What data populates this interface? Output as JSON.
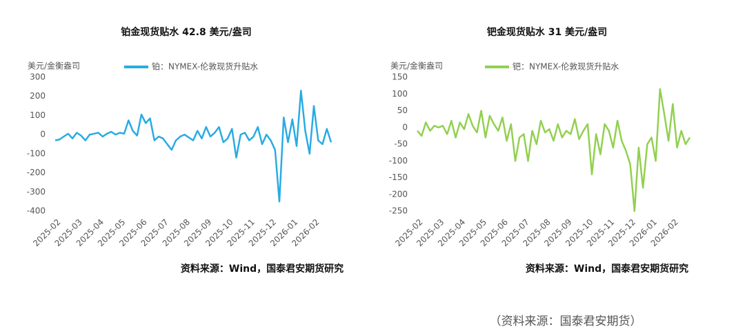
{
  "chart_data": [
    {
      "type": "line",
      "title": "铂金现货贴水 42.8 美元/盎司",
      "y_label": "美元/金衡盎司",
      "source": "资料来源：Wind，国泰君安期货研究",
      "categories": [
        "2025-02",
        null,
        null,
        null,
        null,
        "2025-03",
        null,
        null,
        null,
        null,
        "2025-04",
        null,
        null,
        null,
        null,
        "2025-05",
        null,
        null,
        null,
        null,
        "2025-06",
        null,
        null,
        null,
        null,
        "2025-07",
        null,
        null,
        null,
        null,
        "2025-08",
        null,
        null,
        null,
        null,
        "2025-09",
        null,
        null,
        null,
        null,
        "2025-10",
        null,
        null,
        null,
        null,
        "2025-11",
        null,
        null,
        null,
        null,
        "2025-12",
        null,
        null,
        null,
        null,
        "2026-01",
        null,
        null,
        null,
        null,
        "2026-02",
        null,
        null,
        null,
        null
      ],
      "series": [
        {
          "name": "铂：NYMEX-伦敦现货升贴水",
          "color": "#29abe2",
          "values": [
            -30,
            -25,
            -10,
            5,
            -20,
            10,
            -5,
            -30,
            0,
            5,
            10,
            -10,
            5,
            15,
            0,
            10,
            5,
            75,
            20,
            -5,
            105,
            60,
            85,
            -30,
            -10,
            -20,
            -50,
            -80,
            -30,
            -10,
            0,
            -15,
            -30,
            20,
            -20,
            40,
            -10,
            10,
            40,
            -40,
            -20,
            30,
            -120,
            0,
            10,
            -30,
            -10,
            40,
            -50,
            0,
            -30,
            -80,
            -350,
            90,
            -40,
            80,
            -60,
            230,
            20,
            -100,
            150,
            -30,
            -50,
            30,
            -40
          ]
        }
      ],
      "ylim": [
        -400,
        300
      ],
      "yticks": [
        300,
        200,
        100,
        0,
        -100,
        -200,
        -300,
        -400
      ],
      "grid": false
    },
    {
      "type": "line",
      "title": "钯金现货贴水 31 美元/盎司",
      "y_label": "美元/金衡盎司",
      "source": "资料来源：Wind，国泰君安期货研究",
      "categories": [
        "2025-02",
        null,
        null,
        null,
        null,
        "2025-03",
        null,
        null,
        null,
        null,
        "2025-04",
        null,
        null,
        null,
        null,
        "2025-05",
        null,
        null,
        null,
        null,
        "2025-06",
        null,
        null,
        null,
        null,
        "2025-07",
        null,
        null,
        null,
        null,
        "2025-08",
        null,
        null,
        null,
        null,
        "2025-09",
        null,
        null,
        null,
        null,
        "2025-10",
        null,
        null,
        null,
        null,
        "2025-11",
        null,
        null,
        null,
        null,
        "2025-12",
        null,
        null,
        null,
        null,
        "2026-01",
        null,
        null,
        null,
        null,
        "2026-02",
        null,
        null,
        null,
        null
      ],
      "series": [
        {
          "name": "钯：NYMEX-伦敦现货升贴水",
          "color": "#92d050",
          "values": [
            -10,
            -25,
            15,
            -10,
            5,
            0,
            5,
            -20,
            20,
            -30,
            15,
            -5,
            40,
            5,
            -15,
            50,
            -30,
            35,
            10,
            -10,
            30,
            -40,
            10,
            -100,
            -30,
            -20,
            -100,
            -10,
            -50,
            20,
            -15,
            -5,
            -40,
            10,
            -30,
            -10,
            -20,
            25,
            -35,
            -10,
            10,
            -140,
            -20,
            -80,
            10,
            -10,
            -60,
            20,
            -40,
            -70,
            -110,
            -250,
            -60,
            -180,
            -50,
            -30,
            -100,
            115,
            40,
            -40,
            70,
            -60,
            -10,
            -50,
            -30
          ]
        }
      ],
      "ylim": [
        -250,
        150
      ],
      "yticks": [
        150,
        100,
        50,
        0,
        -50,
        -100,
        -150,
        -200,
        -250
      ],
      "grid": false
    }
  ],
  "footer": "（资料来源：国泰君安期货）"
}
